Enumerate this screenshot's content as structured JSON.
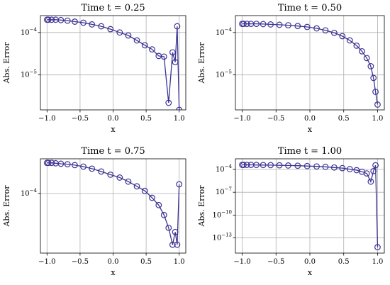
{
  "chart_data": [
    {
      "type": "line",
      "title": "Time t = 0.25",
      "xlabel": "x",
      "ylabel": "Abs. Error",
      "yscale": "log",
      "grid": true,
      "xlim": [
        -1.1,
        1.1
      ],
      "ylim": [
        1.5e-06,
        0.00025
      ],
      "xticks": [
        {
          "value": -1.0,
          "label": "−1.0"
        },
        {
          "value": -0.5,
          "label": "−0.5"
        },
        {
          "value": 0.0,
          "label": "0.0"
        },
        {
          "value": 0.5,
          "label": "0.5"
        },
        {
          "value": 1.0,
          "label": "1.0"
        }
      ],
      "yticks": [
        {
          "value": 1e-05,
          "base": "10",
          "exp": "−5"
        },
        {
          "value": 0.0001,
          "base": "10",
          "exp": "−4"
        }
      ],
      "color": "#3b3393",
      "series": [
        {
          "x": [
            -1.0,
            -0.98,
            -0.93,
            -0.87,
            -0.79,
            -0.69,
            -0.58,
            -0.45,
            -0.32,
            -0.18,
            -0.04,
            0.1,
            0.23,
            0.36,
            0.48,
            0.59,
            0.69,
            0.77,
            0.84,
            0.9,
            0.94,
            0.97,
            1.0
          ],
          "y": [
            0.0002,
            0.0002,
            0.0002,
            0.0002,
            0.000196,
            0.00019,
            0.00018,
            0.00017,
            0.000155,
            0.00014,
            0.00012,
            0.0001,
            8.5e-05,
            6.5e-05,
            5e-05,
            4e-05,
            2.8e-05,
            2.7e-05,
            2.2e-06,
            3.4e-05,
            2e-05,
            0.00014,
            1e-07
          ]
        }
      ]
    },
    {
      "type": "line",
      "title": "Time t = 0.50",
      "xlabel": "x",
      "ylabel": "Abs. Error",
      "yscale": "log",
      "grid": true,
      "xlim": [
        -1.1,
        1.1
      ],
      "ylim": [
        1.5e-06,
        0.00025
      ],
      "xticks": [
        {
          "value": -1.0,
          "label": "−1.0"
        },
        {
          "value": -0.5,
          "label": "−0.5"
        },
        {
          "value": 0.0,
          "label": "0.0"
        },
        {
          "value": 0.5,
          "label": "0.5"
        },
        {
          "value": 1.0,
          "label": "1.0"
        }
      ],
      "yticks": [
        {
          "value": 1e-05,
          "base": "10",
          "exp": "−5"
        },
        {
          "value": 0.0001,
          "base": "10",
          "exp": "−4"
        }
      ],
      "color": "#3b3393",
      "series": [
        {
          "x": [
            -1.0,
            -0.98,
            -0.93,
            -0.87,
            -0.79,
            -0.69,
            -0.58,
            -0.45,
            -0.32,
            -0.18,
            -0.04,
            0.1,
            0.23,
            0.36,
            0.48,
            0.59,
            0.69,
            0.77,
            0.84,
            0.9,
            0.94,
            0.97,
            1.0
          ],
          "y": [
            0.00016,
            0.00016,
            0.00016,
            0.00016,
            0.00016,
            0.000158,
            0.000155,
            0.000152,
            0.000148,
            0.000142,
            0.000135,
            0.000125,
            0.000112,
            9.8e-05,
            8.2e-05,
            6.5e-05,
            4.9e-05,
            3.6e-05,
            2.5e-05,
            1.6e-05,
            8.5e-06,
            4e-06,
            2e-06
          ]
        }
      ]
    },
    {
      "type": "line",
      "title": "Time t = 0.75",
      "xlabel": "x",
      "ylabel": "Abs. Error",
      "yscale": "log",
      "grid": true,
      "xlim": [
        -1.1,
        1.1
      ],
      "ylim": [
        1.1e-05,
        0.00036
      ],
      "xticks": [
        {
          "value": -1.0,
          "label": "−1.0"
        },
        {
          "value": -0.5,
          "label": "−0.5"
        },
        {
          "value": 0.0,
          "label": "0.0"
        },
        {
          "value": 0.5,
          "label": "0.5"
        },
        {
          "value": 1.0,
          "label": "1.0"
        }
      ],
      "yticks": [
        {
          "value": 0.0001,
          "base": "10",
          "exp": "−4"
        }
      ],
      "color": "#3b3393",
      "series": [
        {
          "x": [
            -1.0,
            -0.98,
            -0.93,
            -0.87,
            -0.79,
            -0.69,
            -0.58,
            -0.45,
            -0.32,
            -0.18,
            -0.04,
            0.1,
            0.23,
            0.36,
            0.48,
            0.59,
            0.69,
            0.77,
            0.84,
            0.9,
            0.94,
            0.97,
            1.0
          ],
          "y": [
            0.00031,
            0.00031,
            0.00031,
            0.000305,
            0.0003,
            0.000295,
            0.000285,
            0.00027,
            0.00025,
            0.000225,
            0.0002,
            0.00018,
            0.000155,
            0.00013,
            0.00011,
            8.5e-05,
            6.5e-05,
            4.5e-05,
            2.8e-05,
            1.5e-05,
            2.4e-05,
            1.5e-05,
            0.00014
          ]
        }
      ]
    },
    {
      "type": "line",
      "title": "Time t = 1.00",
      "xlabel": "x",
      "ylabel": "Abs. Error",
      "yscale": "log",
      "grid": true,
      "xlim": [
        -1.1,
        1.1
      ],
      "ylim": [
        1e-15,
        0.0025
      ],
      "xticks": [
        {
          "value": -1.0,
          "label": "−1.0"
        },
        {
          "value": -0.5,
          "label": "−0.5"
        },
        {
          "value": 0.0,
          "label": "0.0"
        },
        {
          "value": 0.5,
          "label": "0.5"
        },
        {
          "value": 1.0,
          "label": "1.0"
        }
      ],
      "yticks": [
        {
          "value": 1e-13,
          "base": "10",
          "exp": "−13"
        },
        {
          "value": 1e-10,
          "base": "10",
          "exp": "−10"
        },
        {
          "value": 1e-07,
          "base": "10",
          "exp": "−7"
        },
        {
          "value": 0.0001,
          "base": "10",
          "exp": "−4"
        }
      ],
      "color": "#3b3393",
      "series": [
        {
          "x": [
            -1.0,
            -0.98,
            -0.93,
            -0.87,
            -0.79,
            -0.69,
            -0.58,
            -0.45,
            -0.32,
            -0.18,
            -0.04,
            0.1,
            0.23,
            0.36,
            0.48,
            0.59,
            0.69,
            0.77,
            0.84,
            0.9,
            0.94,
            0.97,
            1.0
          ],
          "y": [
            0.0004,
            0.0004,
            0.0004,
            0.0004,
            0.00039,
            0.00038,
            0.00037,
            0.00035,
            0.00033,
            0.00031,
            0.00028,
            0.00025,
            0.00022,
            0.00018,
            0.00015,
            0.00011,
            8e-05,
            5e-05,
            3e-05,
            2.5e-06,
            6e-05,
            0.00035,
            6e-15
          ]
        }
      ]
    }
  ]
}
